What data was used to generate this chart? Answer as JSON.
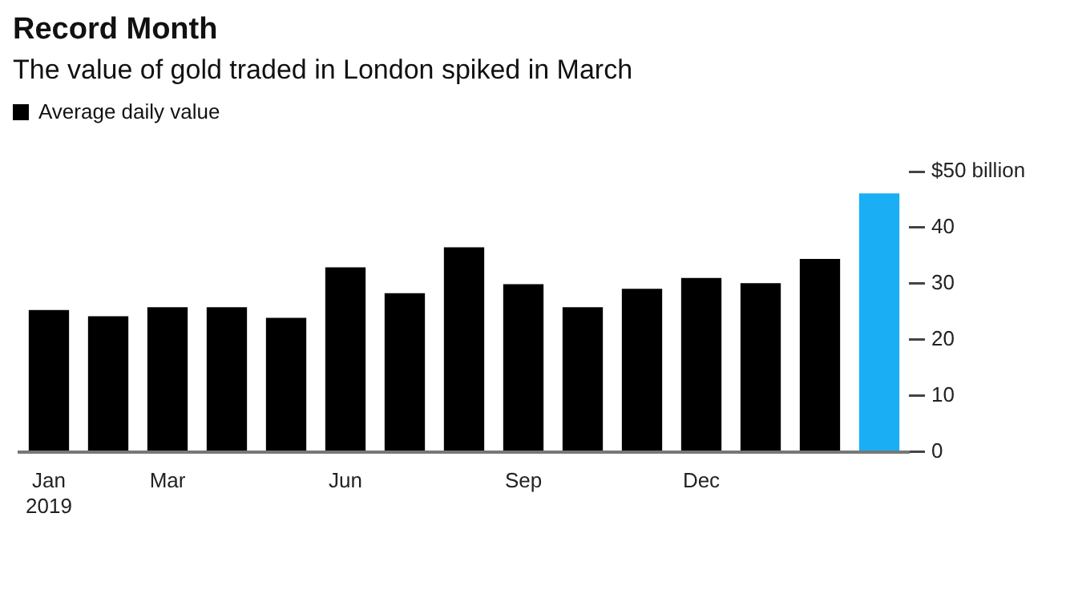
{
  "chart_data": {
    "type": "bar",
    "title": "Record Month",
    "subtitle": "The value of gold traded in London spiked in March",
    "categories": [
      "Jan\n2019",
      null,
      "Mar",
      null,
      null,
      "Jun",
      null,
      null,
      "Sep",
      null,
      null,
      "Dec",
      null,
      null,
      null
    ],
    "series": [
      {
        "name": "Average daily value",
        "color": "#000000",
        "colors": [
          "#000000",
          "#000000",
          "#000000",
          "#000000",
          "#000000",
          "#000000",
          "#000000",
          "#000000",
          "#000000",
          "#000000",
          "#000000",
          "#000000",
          "#000000",
          "#000000",
          "#1aaef5"
        ],
        "values": [
          25.3,
          24.2,
          25.8,
          25.8,
          23.9,
          32.9,
          28.3,
          36.5,
          29.9,
          25.8,
          29.1,
          31.0,
          30.1,
          34.4,
          46.1
        ]
      }
    ],
    "ylim": [
      0,
      50
    ],
    "yticks": [
      0,
      10,
      20,
      30,
      40,
      {
        "value": 50,
        "label": "$50 billion"
      }
    ],
    "grid": false,
    "legend": "top left"
  }
}
